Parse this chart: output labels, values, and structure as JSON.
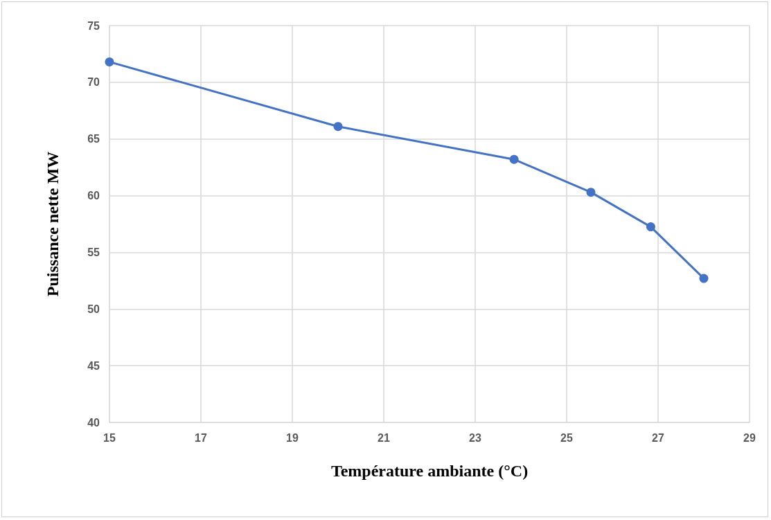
{
  "chart_data": {
    "type": "line",
    "xlabel": "Température ambiante (°C)",
    "ylabel": "Puissance nette MW",
    "x": [
      15,
      20,
      23.85,
      25.53,
      26.84,
      28
    ],
    "series": [
      {
        "color": "#4472c4",
        "values": [
          71.8,
          66.1,
          63.2,
          60.3,
          57.25,
          52.7
        ]
      }
    ],
    "xlim": [
      15,
      29
    ],
    "xticks": [
      15,
      17,
      19,
      21,
      23,
      25,
      27,
      29
    ],
    "ylim": [
      40,
      75
    ],
    "yticks": [
      40,
      45,
      50,
      55,
      60,
      65,
      70,
      75
    ],
    "grid": true,
    "marker": "circle",
    "line_style": "solid"
  }
}
